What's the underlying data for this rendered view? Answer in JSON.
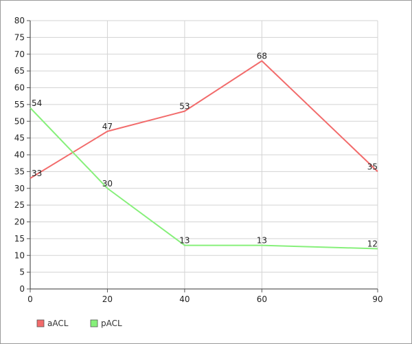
{
  "chart_data": {
    "type": "line",
    "title": "",
    "xlabel": "",
    "ylabel": "",
    "x": [
      0,
      20,
      40,
      60,
      90
    ],
    "xticks": [
      0,
      20,
      40,
      60,
      90
    ],
    "ylim": [
      0,
      80
    ],
    "yticks": [
      0,
      5,
      10,
      15,
      20,
      25,
      30,
      35,
      40,
      45,
      50,
      55,
      60,
      65,
      70,
      75,
      80
    ],
    "grid": true,
    "legend_position": "bottom-left",
    "series": [
      {
        "name": "aACL",
        "color": "#f26b6b",
        "values": [
          33,
          47,
          53,
          68,
          35
        ]
      },
      {
        "name": "pACL",
        "color": "#86f07a",
        "values": [
          54,
          30,
          13,
          13,
          12
        ]
      }
    ]
  }
}
